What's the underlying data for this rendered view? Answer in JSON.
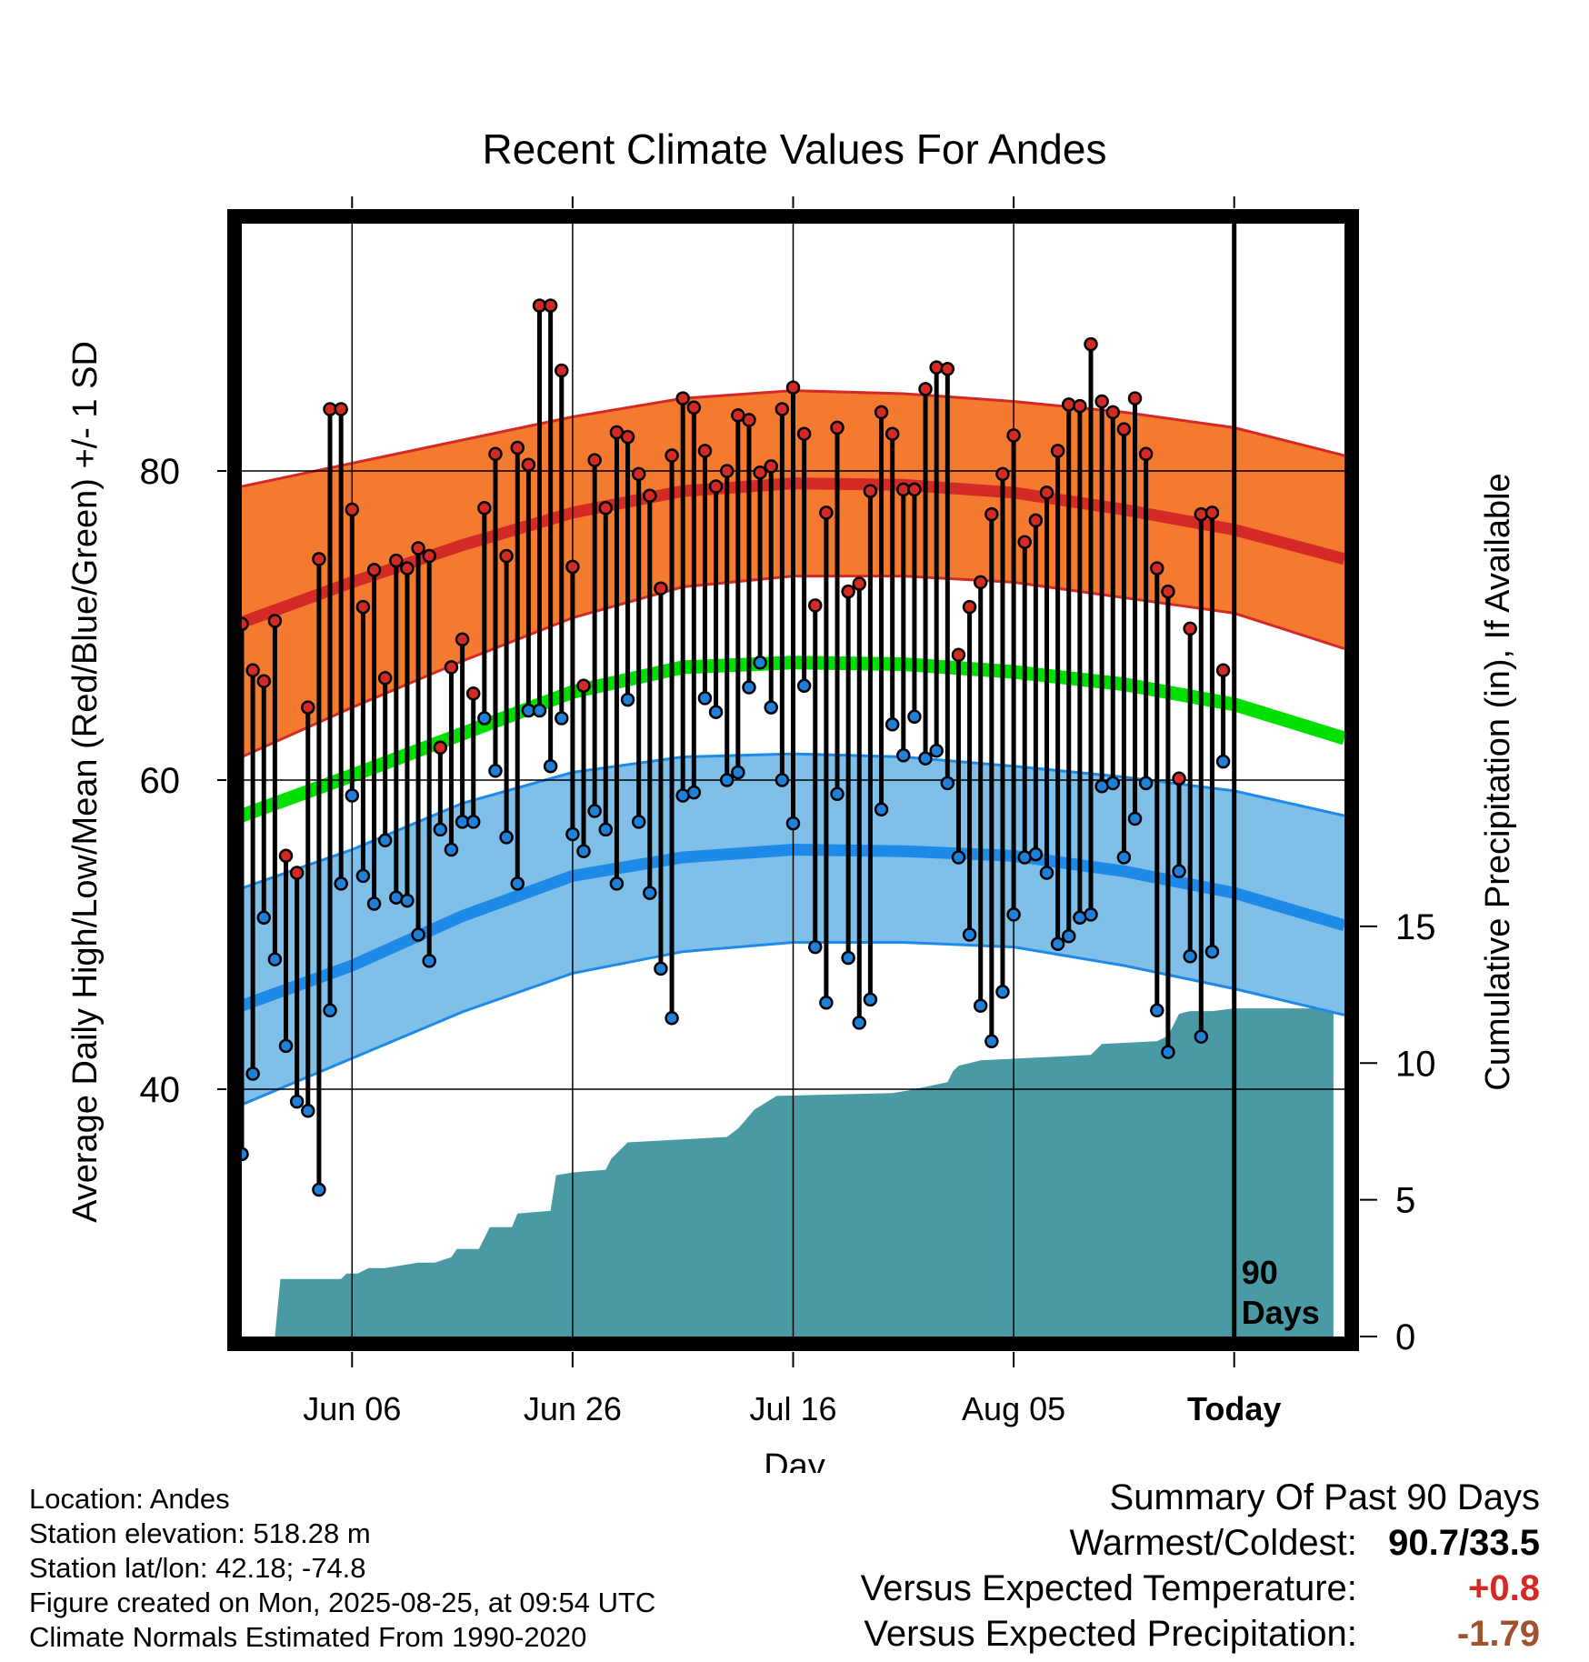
{
  "colors": {
    "high_band": "#f47a30",
    "high_edge": "#d42a26",
    "low_band": "#7fbfe8",
    "low_edge": "#1e8ae8",
    "mean_line": "#00e000",
    "precip": "#4a9aa5",
    "high_point": "#d42a26",
    "low_point": "#1e80d8"
  },
  "chart_data": {
    "type": "line",
    "title": "Recent Climate Values For Andes",
    "xlabel": "Day",
    "ylabel": "Average Daily High/Low/Mean (Red/Blue/Green) +/- 1 SD",
    "y2label": "Cumulative Precipitation (in), If Available",
    "ylim": [
      24,
      96
    ],
    "y2lim": [
      0,
      40.7
    ],
    "yticks": [
      40,
      60,
      80
    ],
    "y2ticks": [
      0,
      5,
      10,
      15
    ],
    "xtick_labels": [
      "Jun 06",
      "Jun 26",
      "Jul 16",
      "Aug 05",
      "Today"
    ],
    "xticks_day": [
      10,
      30,
      50,
      70,
      90
    ],
    "xlim": [
      0,
      100
    ],
    "today_marker": "90\nDays",
    "normals": {
      "day": [
        0,
        10,
        20,
        30,
        40,
        50,
        60,
        70,
        80,
        90,
        100
      ],
      "mean_high": [
        70.2,
        72.8,
        75.2,
        77.3,
        78.7,
        79.2,
        79.1,
        78.6,
        77.5,
        76.2,
        74.3
      ],
      "high_sd_upper": [
        79.0,
        80.5,
        82.0,
        83.5,
        84.7,
        85.2,
        85.0,
        84.5,
        83.8,
        82.8,
        81.0
      ],
      "high_sd_lower": [
        61.5,
        64.7,
        67.7,
        70.5,
        72.5,
        73.2,
        73.2,
        72.8,
        71.8,
        70.8,
        68.5
      ],
      "mean": [
        57.7,
        60.3,
        63.0,
        65.7,
        67.3,
        67.6,
        67.5,
        67.0,
        66.2,
        64.9,
        62.7
      ],
      "mean_low": [
        45.4,
        48.0,
        51.2,
        53.8,
        55.0,
        55.5,
        55.4,
        55.1,
        54.1,
        52.7,
        50.6
      ],
      "low_sd_upper": [
        53.0,
        55.5,
        58.5,
        60.5,
        61.5,
        61.7,
        61.5,
        60.9,
        60.2,
        59.3,
        57.7
      ],
      "low_sd_lower": [
        39.0,
        42.0,
        45.0,
        47.5,
        48.9,
        49.5,
        49.5,
        49.2,
        48.0,
        46.5,
        44.8
      ]
    },
    "days": [
      0,
      1,
      2,
      3,
      4,
      5,
      6,
      7,
      8,
      9,
      10,
      11,
      12,
      13,
      14,
      15,
      16,
      17,
      18,
      19,
      20,
      21,
      22,
      23,
      24,
      25,
      26,
      27,
      28,
      29,
      30,
      31,
      32,
      33,
      34,
      35,
      36,
      37,
      38,
      39,
      40,
      41,
      42,
      43,
      44,
      45,
      46,
      47,
      48,
      49,
      50,
      51,
      52,
      53,
      54,
      55,
      56,
      57,
      58,
      59,
      60,
      61,
      62,
      63,
      64,
      65,
      66,
      67,
      68,
      69,
      70,
      71,
      72,
      73,
      74,
      75,
      76,
      77,
      78,
      79,
      80,
      81,
      82,
      83,
      84,
      85,
      86,
      87,
      88,
      89
    ],
    "highs": [
      70.1,
      67.1,
      66.4,
      70.3,
      55.1,
      54.0,
      64.7,
      74.3,
      84.0,
      84.0,
      77.5,
      71.2,
      73.6,
      66.6,
      74.2,
      73.7,
      75.0,
      74.5,
      62.1,
      67.3,
      69.1,
      65.6,
      77.6,
      81.1,
      74.5,
      81.5,
      80.4,
      90.7,
      90.7,
      86.5,
      73.8,
      66.1,
      80.7,
      77.6,
      82.5,
      82.2,
      79.8,
      78.4,
      72.4,
      81.0,
      84.7,
      84.1,
      81.3,
      79.0,
      80.0,
      83.6,
      83.3,
      79.9,
      80.3,
      84.0,
      85.4,
      82.4,
      71.3,
      77.3,
      82.8,
      72.2,
      72.7,
      78.7,
      83.8,
      82.4,
      78.8,
      78.8,
      85.3,
      86.7,
      86.6,
      68.1,
      71.2,
      72.8,
      77.2,
      79.8,
      82.3,
      75.4,
      76.8,
      78.6,
      81.3,
      84.3,
      84.2,
      88.2,
      84.5,
      83.8,
      82.7,
      84.7,
      81.1,
      73.7,
      72.2,
      60.1,
      69.8,
      77.2,
      77.3,
      67.1
    ],
    "lows": [
      35.8,
      41.0,
      51.1,
      48.4,
      42.8,
      39.2,
      38.6,
      33.5,
      45.1,
      53.3,
      59.0,
      53.8,
      52.0,
      56.1,
      52.4,
      52.2,
      50.0,
      48.3,
      56.8,
      55.5,
      57.3,
      57.3,
      64.0,
      60.6,
      56.3,
      53.3,
      64.5,
      64.5,
      60.9,
      64.0,
      56.5,
      55.4,
      58.0,
      56.8,
      53.3,
      65.2,
      57.3,
      52.7,
      47.8,
      44.6,
      59.0,
      59.2,
      65.3,
      64.4,
      60.0,
      60.5,
      66.0,
      67.6,
      64.7,
      60.0,
      57.2,
      66.1,
      49.2,
      45.6,
      59.1,
      48.5,
      44.3,
      45.8,
      58.1,
      63.6,
      61.6,
      64.1,
      61.4,
      61.9,
      59.8,
      55.0,
      50.0,
      45.4,
      43.1,
      46.3,
      51.3,
      55.0,
      55.2,
      54.0,
      49.4,
      49.9,
      51.1,
      51.3,
      59.6,
      59.8,
      55.0,
      57.5,
      59.8,
      45.1,
      42.4,
      54.1,
      48.6,
      43.4,
      48.9,
      61.2
    ],
    "precip_day": [
      0,
      3,
      3.5,
      9,
      9.5,
      10.5,
      11.5,
      12.5,
      13,
      16,
      17.5,
      19,
      19.5,
      21.5,
      22.5,
      23,
      24.5,
      25,
      28,
      28.5,
      30,
      33,
      33.5,
      34.5,
      35,
      44,
      45,
      46.5,
      48.5,
      59,
      60.5,
      64,
      64.5,
      65,
      66,
      67,
      77,
      78,
      83,
      84,
      85,
      86,
      88,
      90,
      99
    ],
    "precip_in": [
      0,
      0,
      2.1,
      2.1,
      2.3,
      2.3,
      2.5,
      2.5,
      2.5,
      2.7,
      2.7,
      2.9,
      3.2,
      3.2,
      4.0,
      4.0,
      4.0,
      4.5,
      4.6,
      5.9,
      6.0,
      6.1,
      6.5,
      6.9,
      7.1,
      7.3,
      7.6,
      8.3,
      8.8,
      8.9,
      9.0,
      9.3,
      9.7,
      9.9,
      10.0,
      10.1,
      10.3,
      10.7,
      10.8,
      11.0,
      11.8,
      11.9,
      11.9,
      12.0,
      12.0
    ]
  },
  "footer": {
    "location": "Location: Andes",
    "elevation": "Station elevation: 518.28 m",
    "latlon": "Station lat/lon: 42.18; -74.8",
    "created": "Figure created on Mon, 2025-08-25, at 09:54 UTC",
    "normals": "Climate Normals Estimated From 1990-2020"
  },
  "summary": {
    "title": "Summary Of Past 90 Days",
    "warm_cold_label": "Warmest/Coldest:",
    "warm_cold_value": "90.7/33.5",
    "temp_label": "Versus Expected Temperature:",
    "temp_value": "+0.8",
    "temp_color": "#d42a26",
    "precip_label": "Versus Expected Precipitation:",
    "precip_value": "-1.79",
    "precip_color": "#a0522d"
  }
}
